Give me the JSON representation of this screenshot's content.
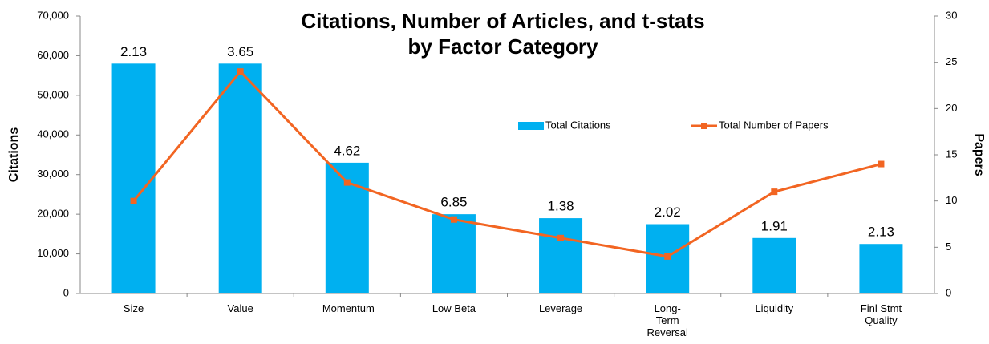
{
  "chart_data": {
    "type": "bar_line",
    "title": "Citations, Number of Articles, and t-stats by Factor Category",
    "ylabel": "Citations",
    "y2label": "Papers",
    "categories": [
      "Size",
      "Value",
      "Momentum",
      "Low Beta",
      "Leverage",
      "Long-Term Reversal",
      "Liquidity",
      "Finl Stmt Quality"
    ],
    "series": [
      {
        "name": "Total Citations",
        "color": "#00b0f0",
        "type": "bar",
        "values": [
          58000,
          58000,
          33000,
          20000,
          19000,
          17500,
          14000,
          12500
        ]
      },
      {
        "name": "Total Number of Papers",
        "color": "#f26522",
        "type": "line",
        "axis": "y2",
        "values": [
          10,
          24,
          12,
          8,
          6,
          4,
          11,
          14
        ]
      }
    ],
    "t_stats": [
      2.13,
      3.65,
      4.62,
      6.85,
      1.38,
      2.02,
      1.91,
      2.13
    ],
    "ylim": [
      0,
      70000
    ],
    "yticks": [
      0,
      {
        "value": 10000,
        "label": "10,000"
      },
      {
        "value": 20000,
        "label": "20,000"
      },
      {
        "value": 30000,
        "label": "30,000"
      },
      {
        "value": 40000,
        "label": "40,000"
      },
      {
        "value": 50000,
        "label": "50,000"
      },
      {
        "value": 60000,
        "label": "60,000"
      },
      {
        "value": 70000,
        "label": "70,000"
      }
    ],
    "y2lim": [
      0,
      30
    ],
    "y2ticks": [
      0,
      5,
      10,
      15,
      20,
      25,
      30
    ],
    "grid": false
  }
}
